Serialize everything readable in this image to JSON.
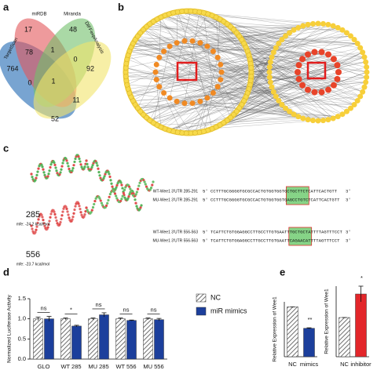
{
  "panel_labels": [
    "a",
    "b",
    "c",
    "d",
    "e"
  ],
  "venn": {
    "sets": [
      "TargetScan",
      "miRDB",
      "Miranda",
      "DIFFexpAnalysis"
    ],
    "counts": [
      764,
      17,
      48,
      92,
      78,
      1,
      0,
      0,
      1,
      11,
      52
    ]
  },
  "structures": [
    {
      "id": "285",
      "mfe": "mfe: -24.2 kcal/mol"
    },
    {
      "id": "556",
      "mfe": "mfe: -23.7 kcal/mol"
    }
  ],
  "ends": [
    "5'",
    "3'"
  ],
  "alignments": [
    {
      "label": "WT-Wee1 3'UTR 285-291",
      "sequence": "CCTTTGCGGGGTGCGCCACTGTGGTGGTGCTGCTTCTCATTCACTGTT"
    },
    {
      "label": "MU-Wee1 3'UTR 285-291",
      "sequence": "CCTTTGCGGGGTGCGCCACTGTGGTGGTGAGCCTGTCTCATTCACTGTT"
    },
    {
      "label": "WT-Wee1 3'UTR 556-563",
      "sequence": "TCATTCTGTGGAGGCCTTGCCTTGTGAATTTGCTGCTATTTTAGTTTCCT"
    },
    {
      "label": "MU-Wee1 3'UTR 556-563",
      "sequence": "TCATTCTGTGGAGGCCTTGCCTTGTGAATTCAGAACATTTTAGTTTCCT"
    }
  ],
  "chart_data": [
    {
      "type": "bar",
      "y_label": "Normalized Luciferase Activity",
      "categories": [
        "GLO",
        "WT 285",
        "MU 285",
        "WT 556",
        "MU 556"
      ],
      "series": [
        {
          "name": "NC",
          "color": "#6f6f6f",
          "pattern": "diagonal-hatch",
          "values": [
            1.0,
            1.0,
            1.0,
            1.0,
            1.0
          ],
          "errors": [
            0.04,
            0.02,
            0.02,
            0.02,
            0.02
          ]
        },
        {
          "name": "miR mimics",
          "color": "#1c3f9c",
          "pattern": "solid",
          "values": [
            1.0,
            0.82,
            1.1,
            0.96,
            0.98
          ],
          "errors": [
            0.06,
            0.02,
            0.05,
            0.01,
            0.03
          ]
        }
      ],
      "significance": [
        "ns",
        "*",
        "ns",
        "ns",
        "ns"
      ],
      "ylim": [
        0,
        1.5
      ],
      "yticks": [
        {
          "value": 0,
          "label": "0.0"
        },
        {
          "value": 0.5,
          "label": "0.5"
        },
        {
          "value": 1.0,
          "label": "1.0"
        },
        {
          "value": 1.5,
          "label": "1.5"
        }
      ]
    },
    {
      "type": "bar",
      "y_label": "Relative Expression of Wee1",
      "categories": [
        "NC",
        "mimics"
      ],
      "values": [
        1.0,
        0.57
      ],
      "errors": [
        0,
        0.01
      ],
      "colors": [
        "#6f6f6f",
        "#1c3f9c"
      ],
      "patterns": [
        "diagonal-hatch",
        "solid"
      ],
      "significance": [
        null,
        "**"
      ],
      "ylim": [
        0,
        1.1
      ]
    },
    {
      "type": "bar",
      "y_label": "Relative Expression of Wee1",
      "categories": [
        "NC",
        "inhibitor"
      ],
      "values": [
        1.0,
        1.6
      ],
      "errors": [
        0,
        0.2
      ],
      "colors": [
        "#6f6f6f",
        "#e3262a"
      ],
      "patterns": [
        "diagonal-hatch",
        "solid"
      ],
      "significance": [
        null,
        "*"
      ],
      "ylim": [
        0,
        1.8
      ]
    }
  ]
}
